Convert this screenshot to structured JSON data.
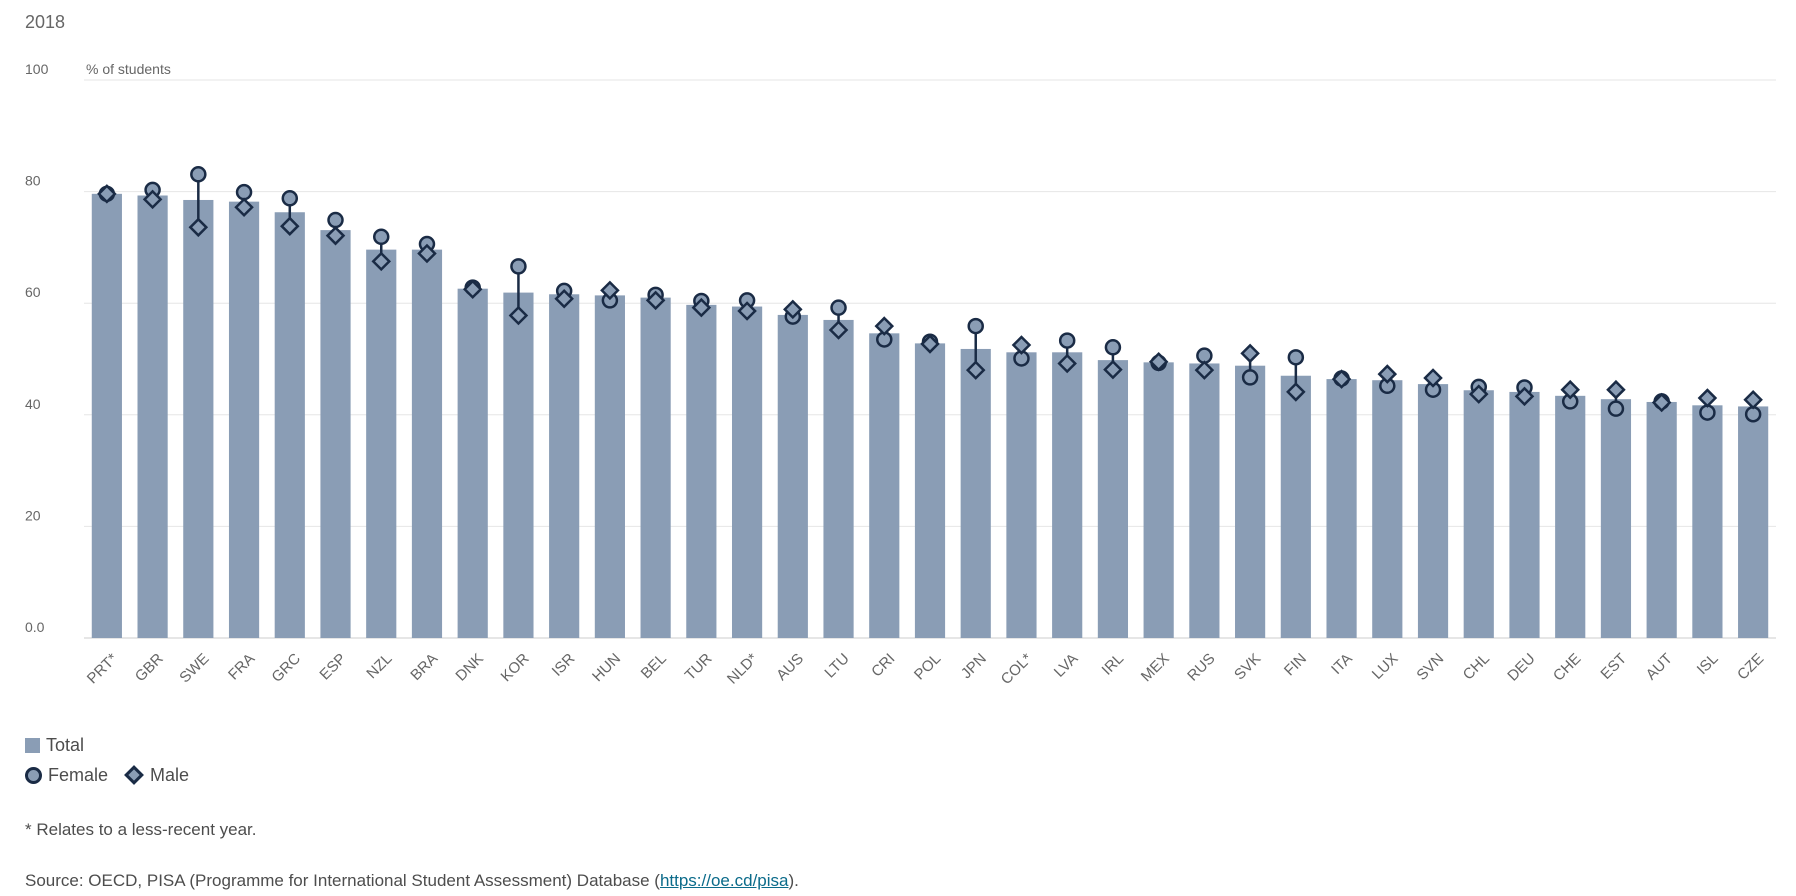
{
  "chart_data": {
    "type": "bar",
    "title": "2018",
    "ylabel": "% of students",
    "ylim": [
      0,
      100
    ],
    "yticks": [
      "0.0",
      "20",
      "40",
      "60",
      "80",
      "100"
    ],
    "categories": [
      "PRT*",
      "GBR",
      "SWE",
      "FRA",
      "GRC",
      "ESP",
      "NZL",
      "BRA",
      "DNK",
      "KOR",
      "ISR",
      "HUN",
      "BEL",
      "TUR",
      "NLD*",
      "AUS",
      "LTU",
      "CRI",
      "POL",
      "JPN",
      "COL*",
      "LVA",
      "IRL",
      "MEX",
      "RUS",
      "SVK",
      "FIN",
      "ITA",
      "LUX",
      "SVN",
      "CHL",
      "DEU",
      "CHE",
      "EST",
      "AUT",
      "ISL",
      "CZE"
    ],
    "series": [
      {
        "name": "Total",
        "values": [
          79.6,
          79.3,
          78.5,
          78.2,
          76.3,
          73.1,
          69.6,
          69.6,
          62.6,
          61.9,
          61.6,
          61.4,
          61.0,
          59.7,
          59.4,
          57.9,
          57.0,
          54.6,
          52.8,
          51.8,
          51.2,
          51.2,
          49.8,
          49.4,
          49.2,
          48.8,
          47.0,
          46.4,
          46.2,
          45.5,
          44.4,
          44.1,
          43.4,
          42.8,
          42.3,
          41.7,
          41.5
        ]
      },
      {
        "name": "Female",
        "values": [
          79.6,
          80.3,
          83.1,
          79.9,
          78.8,
          74.9,
          71.9,
          70.6,
          62.8,
          66.6,
          62.2,
          60.5,
          61.5,
          60.4,
          60.5,
          57.6,
          59.2,
          53.5,
          53.1,
          55.9,
          50.1,
          53.3,
          52.1,
          49.3,
          50.6,
          46.7,
          50.3,
          46.5,
          45.2,
          44.5,
          45.0,
          44.9,
          42.4,
          41.1,
          42.4,
          40.4,
          40.1
        ]
      },
      {
        "name": "Male",
        "values": [
          79.6,
          78.6,
          73.6,
          77.2,
          73.8,
          72.1,
          67.5,
          68.9,
          62.5,
          57.8,
          60.8,
          62.3,
          60.5,
          59.2,
          58.6,
          58.9,
          55.2,
          55.9,
          52.7,
          48.0,
          52.5,
          49.2,
          48.1,
          49.5,
          48.0,
          51.0,
          44.1,
          46.4,
          47.3,
          46.6,
          43.7,
          43.3,
          44.5,
          44.5,
          42.2,
          43.0,
          42.7
        ]
      }
    ],
    "legend_placement": "bottom-left",
    "grid": true,
    "colors": {
      "bar": "#8a9db5",
      "marker_fill": "#8a9db5",
      "marker_stroke": "#1a2b45",
      "connector": "#1a2b45",
      "grid": "#e6e6e6",
      "axis_text": "#666666"
    }
  },
  "legend": {
    "total": "Total",
    "female": "Female",
    "male": "Male"
  },
  "note": "* Relates to a less-recent year.",
  "source": {
    "prefix": "Source: OECD, PISA (Programme for International Student Assessment) Database (",
    "link_text": "https://oe.cd/pisa",
    "suffix": ")."
  }
}
